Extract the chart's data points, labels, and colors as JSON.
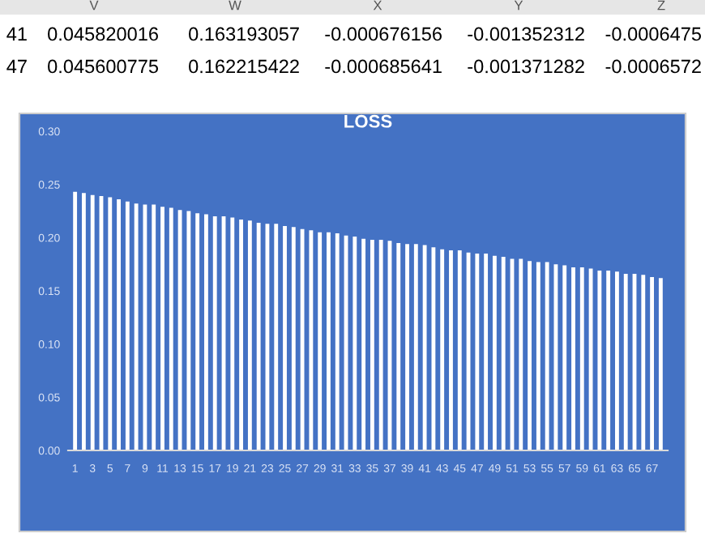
{
  "chart_data": {
    "type": "bar",
    "title": "LOSS",
    "categories": [
      "1",
      null,
      "3",
      null,
      "5",
      null,
      "7",
      null,
      "9",
      null,
      "11",
      null,
      "13",
      null,
      "15",
      null,
      "17",
      null,
      "19",
      null,
      "21",
      null,
      "23",
      null,
      "25",
      null,
      "27",
      null,
      "29",
      null,
      "31",
      null,
      "33",
      null,
      "35",
      null,
      "37",
      null,
      "39",
      null,
      "41",
      null,
      "43",
      null,
      "45",
      null,
      "47",
      null,
      "49",
      null,
      "51",
      null,
      "53",
      null,
      "55",
      null,
      "57",
      null,
      "59",
      null,
      "61",
      null,
      "63",
      null,
      "65",
      null,
      "67",
      null
    ],
    "values": [
      0.243,
      0.242,
      0.24,
      0.239,
      0.238,
      0.236,
      0.234,
      0.232,
      0.231,
      0.231,
      0.229,
      0.228,
      0.226,
      0.225,
      0.223,
      0.222,
      0.22,
      0.22,
      0.219,
      0.217,
      0.216,
      0.214,
      0.213,
      0.213,
      0.211,
      0.21,
      0.208,
      0.207,
      0.205,
      0.205,
      0.204,
      0.202,
      0.201,
      0.199,
      0.198,
      0.198,
      0.197,
      0.195,
      0.194,
      0.194,
      0.193,
      0.191,
      0.189,
      0.188,
      0.188,
      0.186,
      0.185,
      0.185,
      0.183,
      0.182,
      0.18,
      0.18,
      0.178,
      0.177,
      0.177,
      0.175,
      0.174,
      0.172,
      0.172,
      0.171,
      0.169,
      0.169,
      0.168,
      0.166,
      0.166,
      0.165,
      0.163,
      0.162
    ],
    "color": "#ffffff",
    "ylim": [
      0,
      0.3
    ],
    "yticks": [
      {
        "value": 0,
        "label": "0.00"
      },
      {
        "value": 0.05,
        "label": "0.05"
      },
      {
        "value": 0.1,
        "label": "0.10"
      },
      {
        "value": 0.15,
        "label": "0.15"
      },
      {
        "value": 0.2,
        "label": "0.20"
      },
      {
        "value": 0.25,
        "label": "0.25"
      },
      {
        "value": 0.3,
        "label": "0.30"
      }
    ],
    "grid": false,
    "annotations": [
      "V",
      "W",
      "X",
      "Y",
      "Z",
      "41",
      "0.045820016",
      "0.163193057",
      "-0.000676156",
      "-0.001352312",
      "-0.0006475",
      "47",
      "0.045600775",
      "0.162215422",
      "-0.000685641",
      "-0.001371282",
      "-0.0006572"
    ]
  }
}
